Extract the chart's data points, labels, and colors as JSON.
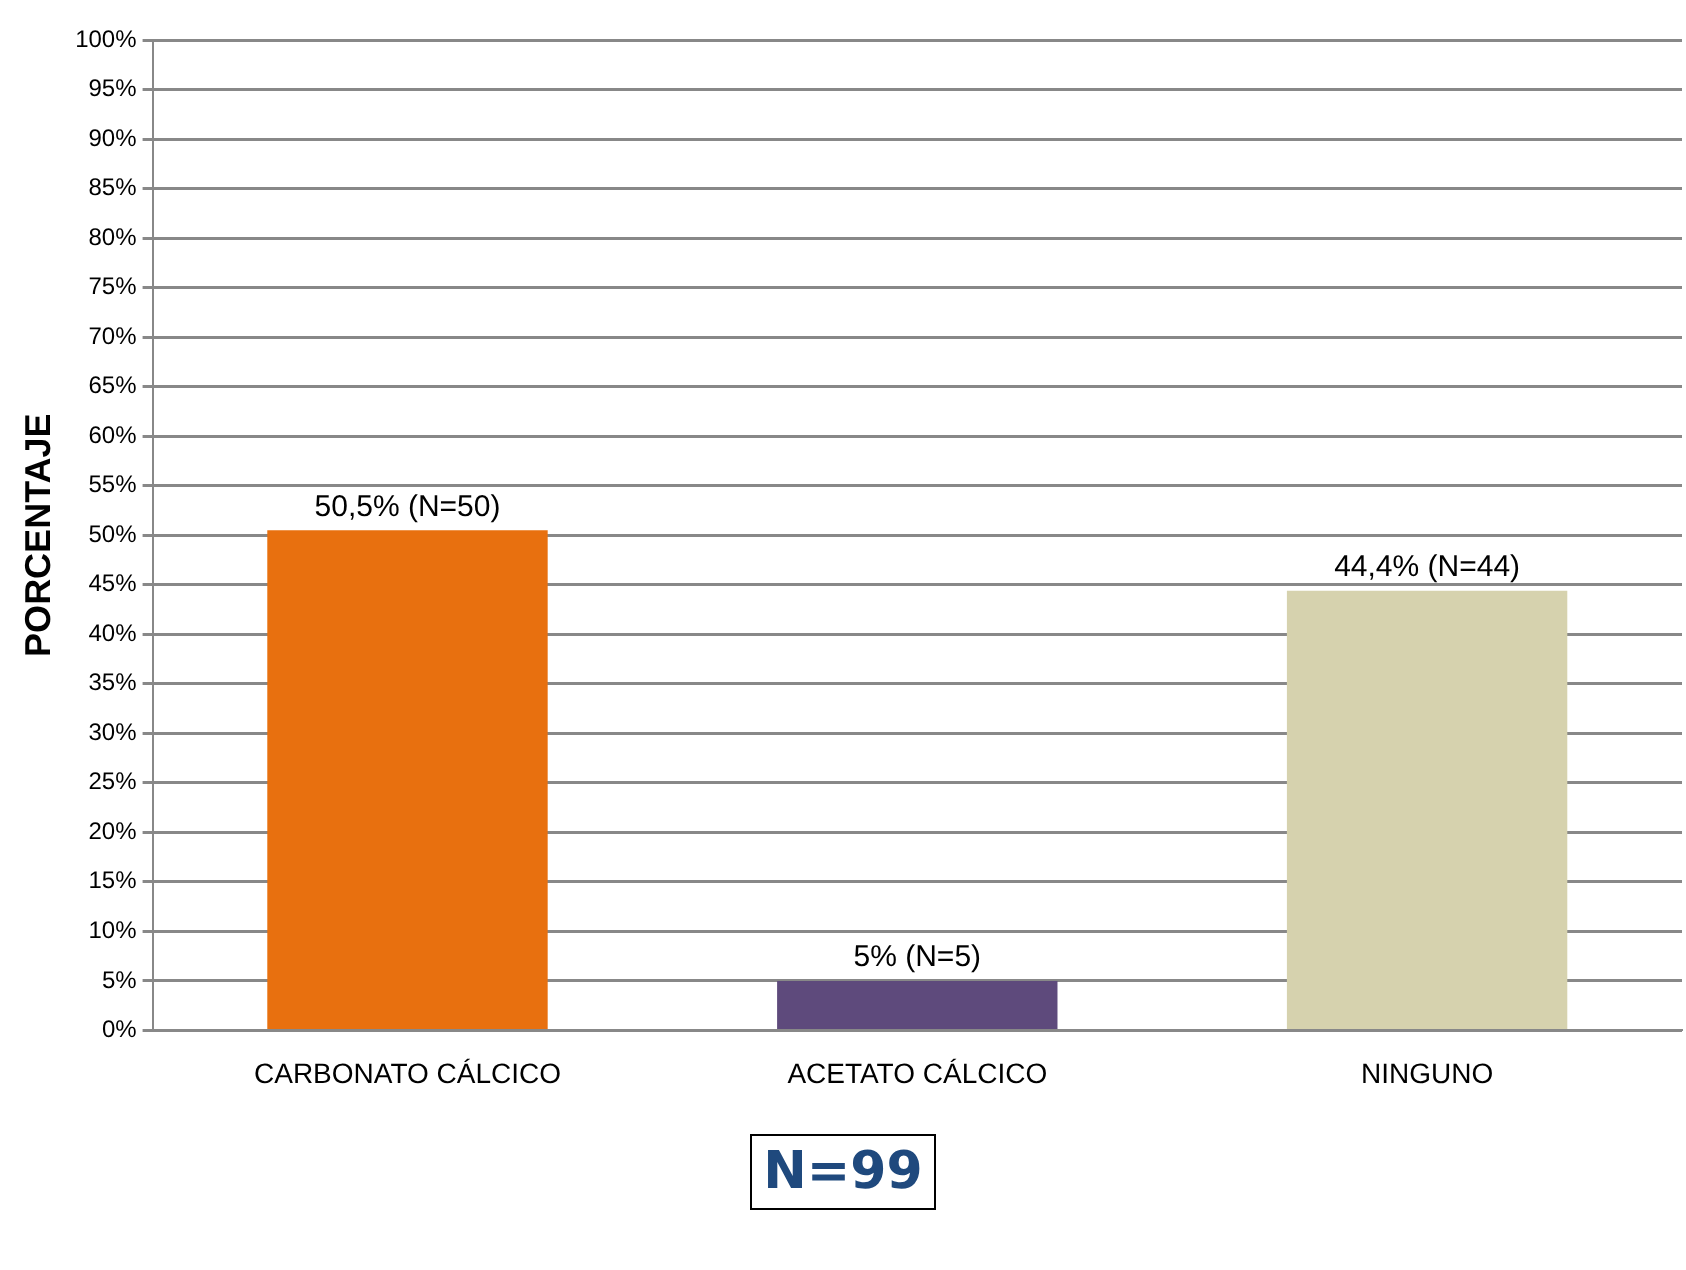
{
  "chart_data": {
    "type": "bar",
    "ylabel": "PORCENTAJE",
    "categories": [
      "CARBONATO CÁLCICO",
      "ACETATO CÁLCICO",
      "NINGUNO"
    ],
    "values": [
      50.5,
      5,
      44.4
    ],
    "colors": [
      "#e8700f",
      "#5e4a7c",
      "#d6d2ae"
    ],
    "value_labels": [
      "50,5% (N=50)",
      "5% (N=5)",
      "44,4% (N=44)"
    ],
    "ylim": [
      0,
      100
    ],
    "yticks": [
      {
        "value": 0,
        "label": "0%"
      },
      {
        "value": 5,
        "label": "5%"
      },
      {
        "value": 10,
        "label": "10%"
      },
      {
        "value": 15,
        "label": "15%"
      },
      {
        "value": 20,
        "label": "20%"
      },
      {
        "value": 25,
        "label": "25%"
      },
      {
        "value": 30,
        "label": "30%"
      },
      {
        "value": 35,
        "label": "35%"
      },
      {
        "value": 40,
        "label": "40%"
      },
      {
        "value": 45,
        "label": "45%"
      },
      {
        "value": 50,
        "label": "50%"
      },
      {
        "value": 55,
        "label": "55%"
      },
      {
        "value": 60,
        "label": "60%"
      },
      {
        "value": 65,
        "label": "65%"
      },
      {
        "value": 70,
        "label": "70%"
      },
      {
        "value": 75,
        "label": "75%"
      },
      {
        "value": 80,
        "label": "80%"
      },
      {
        "value": 85,
        "label": "85%"
      },
      {
        "value": 90,
        "label": "90%"
      },
      {
        "value": 95,
        "label": "95%"
      },
      {
        "value": 100,
        "label": "100%"
      }
    ],
    "grid": "y",
    "legend": false,
    "annotations": [
      "N=99"
    ]
  }
}
